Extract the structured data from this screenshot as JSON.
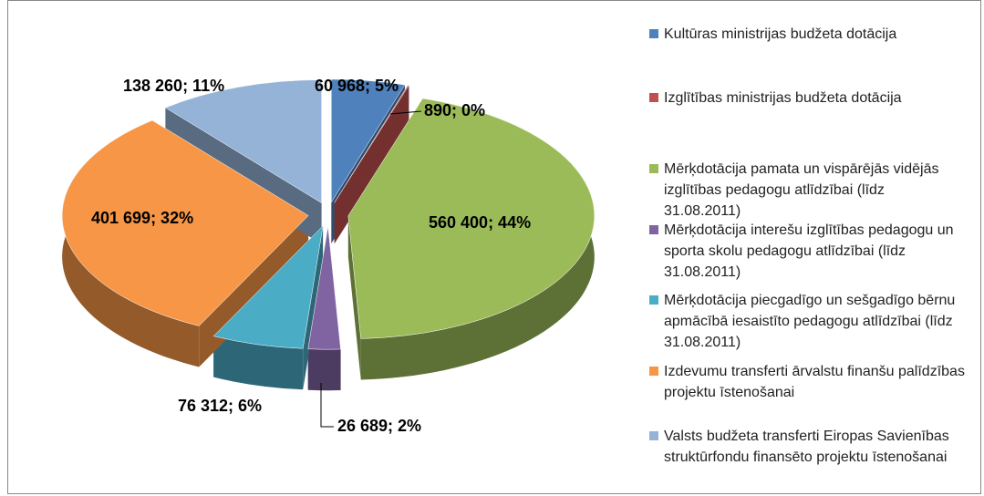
{
  "chart_data": {
    "type": "pie",
    "categories": [
      "Kultūras ministrijas budžeta dotācija",
      "Izglītības ministrijas budžeta dotācija",
      "Mērķdotācija pamata un vispārējās vidējās izglītības pedagogu atlīdzībai (līdz 31.08.2011)",
      "Mērķdotācija interešu izglītības pedagogu un sporta skolu pedagogu atlīdzībai (līdz 31.08.2011)",
      "Mērķdotācija piecgadīgo un sešgadīgo bērnu apmācībā iesaistīto pedagogu atlīdzībai (līdz 31.08.2011)",
      "Izdevumu transferti ārvalstu finanšu palīdzības projektu īstenošanai",
      "Valsts budžeta transferti Eiropas Savienības struktūrfondu finansēto projektu īstenošanai"
    ],
    "values": [
      60968,
      890,
      560400,
      26689,
      76312,
      401699,
      138260
    ],
    "value_labels": [
      "60 968; 5%",
      "890; 0%",
      "560 400; 44%",
      "26 689; 2%",
      "76 312; 6%",
      "401 699; 32%",
      "138 260; 11%"
    ],
    "colors": [
      "#4f81bd",
      "#c0504d",
      "#9bbb59",
      "#8064a2",
      "#4bacc6",
      "#f79646",
      "#95b3d7"
    ]
  }
}
